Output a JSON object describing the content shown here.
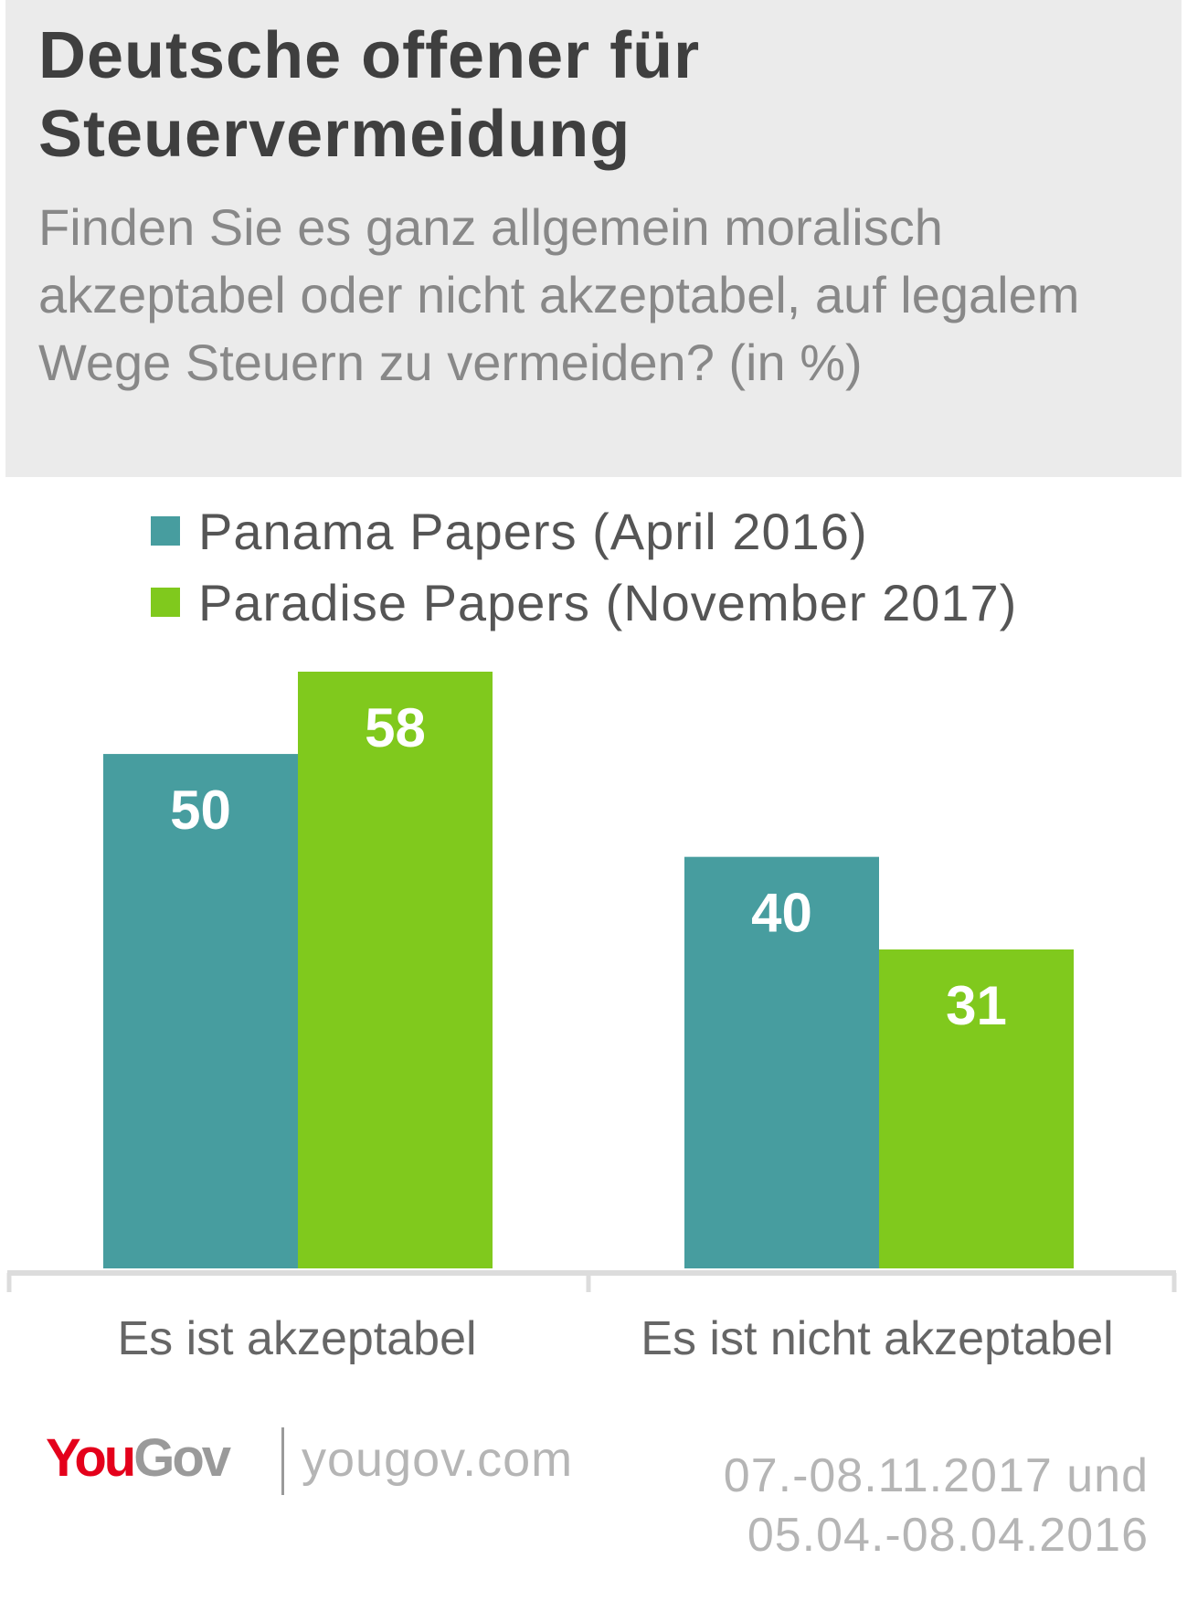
{
  "header": {
    "title": "Deutsche offener für\nSteuervermeidung",
    "subtitle": "Finden Sie es ganz allgemein moralisch akzeptabel oder nicht akzeptabel, auf legalem Wege Steuern zu vermeiden? (in %)"
  },
  "chart_data": {
    "type": "bar",
    "title": "Deutsche offener für Steuervermeidung",
    "subtitle": "Finden Sie es ganz allgemein moralisch akzeptabel oder nicht akzeptabel, auf legalem Wege Steuern zu vermeiden? (in %)",
    "categories": [
      "Es ist akzeptabel",
      "Es ist nicht akzeptabel"
    ],
    "series": [
      {
        "name": "Panama Papers (April 2016)",
        "values": [
          50,
          40
        ],
        "color": "#479d9f"
      },
      {
        "name": "Paradise Papers (November 2017)",
        "values": [
          58,
          31
        ],
        "color": "#80c91d"
      }
    ],
    "ylim": [
      0,
      58
    ],
    "grid": false,
    "legend_position": "top-left",
    "value_label_color": "#ffffff"
  },
  "footer": {
    "logo_you": "You",
    "logo_gov": "Gov",
    "url": "yougov.com",
    "date_line_1": "07.-08.11.2017 und",
    "date_line_2": "05.04.-08.04.2016"
  },
  "colors": {
    "header_background": "#ebebeb",
    "title": "#3f3f3f",
    "subtitle": "#888888",
    "axis": "#dcdcdc",
    "brand_red": "#e4001b"
  }
}
